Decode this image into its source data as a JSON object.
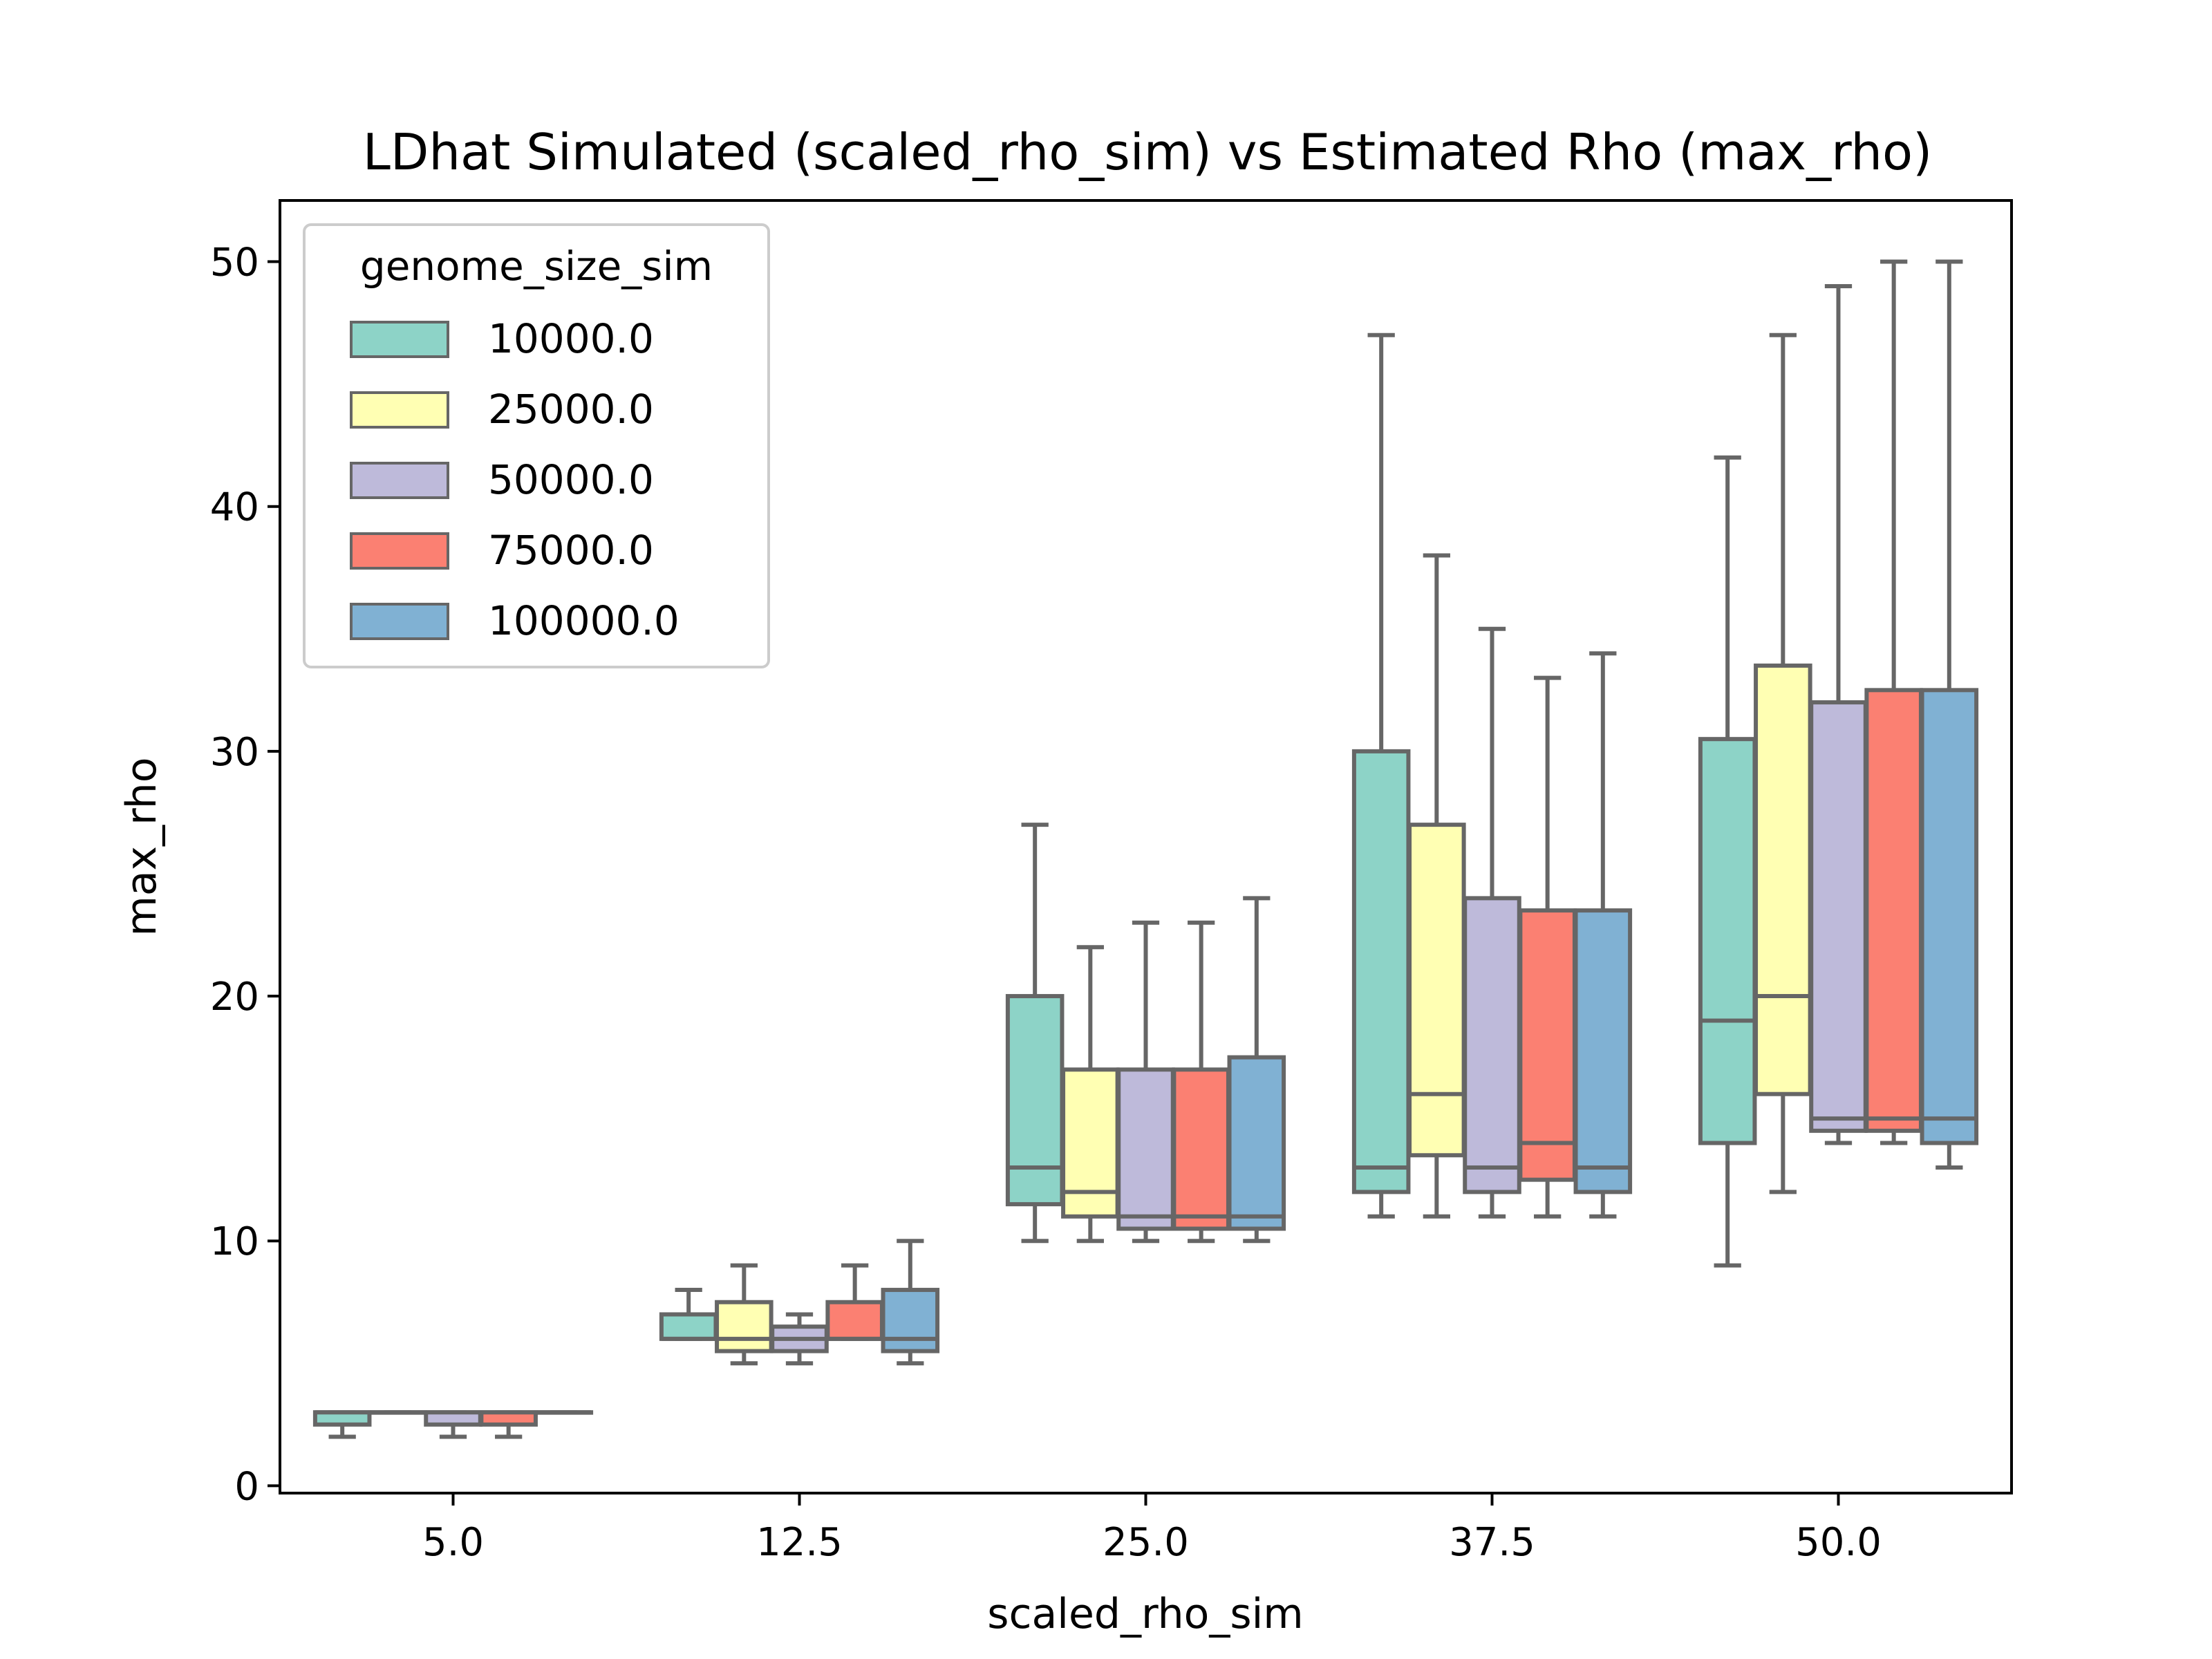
{
  "chart_data": {
    "type": "boxplot",
    "title": "LDhat Simulated (scaled_rho_sim) vs Estimated Rho (max_rho)",
    "xlabel": "scaled_rho_sim",
    "ylabel": "max_rho",
    "categories": [
      "5.0",
      "12.5",
      "25.0",
      "37.5",
      "50.0"
    ],
    "ylim": [
      -0.3,
      52.5
    ],
    "yticks": [
      0,
      10,
      20,
      30,
      40,
      50
    ],
    "grid": false,
    "legend": {
      "title": "genome_size_sim",
      "position": "top-left"
    },
    "series": [
      {
        "name": "10000.0",
        "color": "#8dd3c7",
        "boxes": [
          {
            "whislo": 2,
            "q1": 2.5,
            "med": 3,
            "q3": 3,
            "whishi": 3
          },
          {
            "whislo": 6,
            "q1": 6,
            "med": 6,
            "q3": 7,
            "whishi": 8
          },
          {
            "whislo": 10,
            "q1": 11.5,
            "med": 13,
            "q3": 20,
            "whishi": 27
          },
          {
            "whislo": 11,
            "q1": 12,
            "med": 13,
            "q3": 30,
            "whishi": 47
          },
          {
            "whislo": 9,
            "q1": 14,
            "med": 19,
            "q3": 30.5,
            "whishi": 42
          }
        ]
      },
      {
        "name": "25000.0",
        "color": "#ffffb3",
        "boxes": [
          {
            "whislo": 3,
            "q1": 3,
            "med": 3,
            "q3": 3,
            "whishi": 3
          },
          {
            "whislo": 5,
            "q1": 5.5,
            "med": 6,
            "q3": 7.5,
            "whishi": 9
          },
          {
            "whislo": 10,
            "q1": 11,
            "med": 12,
            "q3": 17,
            "whishi": 22
          },
          {
            "whislo": 11,
            "q1": 13.5,
            "med": 16,
            "q3": 27,
            "whishi": 38
          },
          {
            "whislo": 12,
            "q1": 16,
            "med": 20,
            "q3": 33.5,
            "whishi": 47
          }
        ]
      },
      {
        "name": "50000.0",
        "color": "#bebada",
        "boxes": [
          {
            "whislo": 2,
            "q1": 2.5,
            "med": 3,
            "q3": 3,
            "whishi": 3
          },
          {
            "whislo": 5,
            "q1": 5.5,
            "med": 6,
            "q3": 6.5,
            "whishi": 7
          },
          {
            "whislo": 10,
            "q1": 10.5,
            "med": 11,
            "q3": 17,
            "whishi": 23
          },
          {
            "whislo": 11,
            "q1": 12,
            "med": 13,
            "q3": 24,
            "whishi": 35
          },
          {
            "whislo": 14,
            "q1": 14.5,
            "med": 15,
            "q3": 32,
            "whishi": 49
          }
        ]
      },
      {
        "name": "75000.0",
        "color": "#fb8072",
        "boxes": [
          {
            "whislo": 2,
            "q1": 2.5,
            "med": 3,
            "q3": 3,
            "whishi": 3
          },
          {
            "whislo": 6,
            "q1": 6,
            "med": 6,
            "q3": 7.5,
            "whishi": 9
          },
          {
            "whislo": 10,
            "q1": 10.5,
            "med": 11,
            "q3": 17,
            "whishi": 23
          },
          {
            "whislo": 11,
            "q1": 12.5,
            "med": 14,
            "q3": 23.5,
            "whishi": 33
          },
          {
            "whislo": 14,
            "q1": 14.5,
            "med": 15,
            "q3": 32.5,
            "whishi": 50
          }
        ]
      },
      {
        "name": "100000.0",
        "color": "#80b1d3",
        "boxes": [
          {
            "whislo": 3,
            "q1": 3,
            "med": 3,
            "q3": 3,
            "whishi": 3
          },
          {
            "whislo": 5,
            "q1": 5.5,
            "med": 6,
            "q3": 8,
            "whishi": 10
          },
          {
            "whislo": 10,
            "q1": 10.5,
            "med": 11,
            "q3": 17.5,
            "whishi": 24
          },
          {
            "whislo": 11,
            "q1": 12,
            "med": 13,
            "q3": 23.5,
            "whishi": 34
          },
          {
            "whislo": 13,
            "q1": 14,
            "med": 15,
            "q3": 32.5,
            "whishi": 50
          }
        ]
      }
    ],
    "box_edge_color": "#666666"
  }
}
